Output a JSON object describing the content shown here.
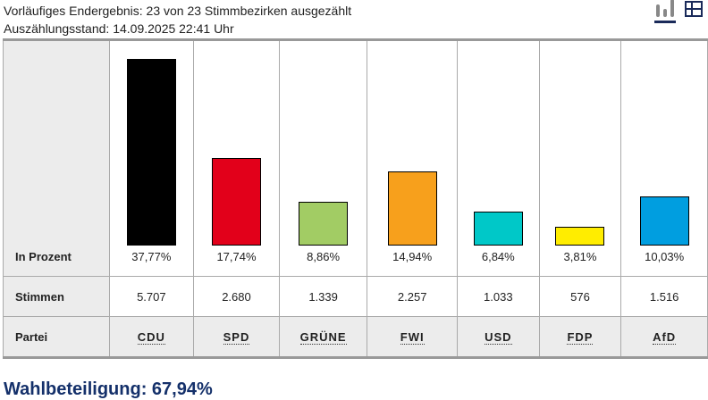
{
  "header": {
    "line1": "Vorläufiges Endergebnis: 23 von 23 Stimmbezirken ausgezählt",
    "line2": "Auszählungsstand: 14.09.2025 22:41 Uhr"
  },
  "icons": {
    "chart": "bar-chart-icon",
    "table": "table-icon"
  },
  "rows": {
    "percent": "In Prozent",
    "votes": "Stimmen",
    "party": "Partei"
  },
  "chart_data": {
    "type": "bar",
    "categories": [
      "CDU",
      "SPD",
      "GRÜNE",
      "FWI",
      "USD",
      "FDP",
      "AfD"
    ],
    "values": [
      37.77,
      17.74,
      8.86,
      14.94,
      6.84,
      3.81,
      10.03
    ],
    "labels": [
      "37,77%",
      "17,74%",
      "8,86%",
      "14,94%",
      "6,84%",
      "3,81%",
      "10,03%"
    ],
    "votes": [
      "5.707",
      "2.680",
      "1.339",
      "2.257",
      "1.033",
      "576",
      "1.516"
    ],
    "colors": [
      "#000000",
      "#e2001a",
      "#a2cc64",
      "#f7a01c",
      "#00c8c8",
      "#ffed00",
      "#009ee0"
    ],
    "ylim": [
      0,
      38
    ]
  },
  "turnout": "Wahlbeteiligung: 67,94%"
}
